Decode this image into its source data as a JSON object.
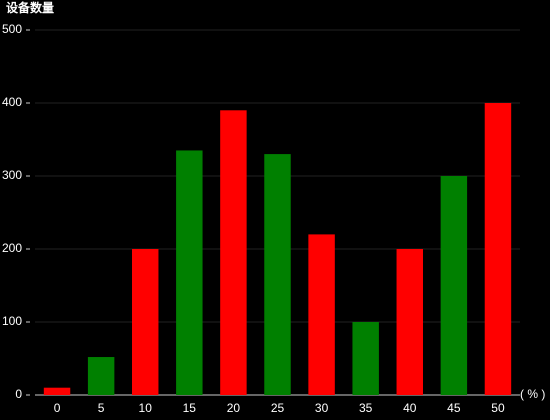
{
  "chart_data": {
    "type": "bar",
    "y_label": "设备数量",
    "x_label": "( % )",
    "categories": [
      "0",
      "5",
      "10",
      "15",
      "20",
      "25",
      "30",
      "35",
      "40",
      "45",
      "50"
    ],
    "values": [
      10,
      52,
      200,
      335,
      390,
      330,
      220,
      100,
      200,
      300,
      400
    ],
    "colors": [
      "#ff0000",
      "#008000",
      "#ff0000",
      "#008000",
      "#ff0000",
      "#008000",
      "#ff0000",
      "#008000",
      "#ff0000",
      "#008000",
      "#ff0000"
    ],
    "ylim": [
      0,
      500
    ],
    "yticks": [
      0,
      100,
      200,
      300,
      400,
      500
    ],
    "grid": true
  }
}
